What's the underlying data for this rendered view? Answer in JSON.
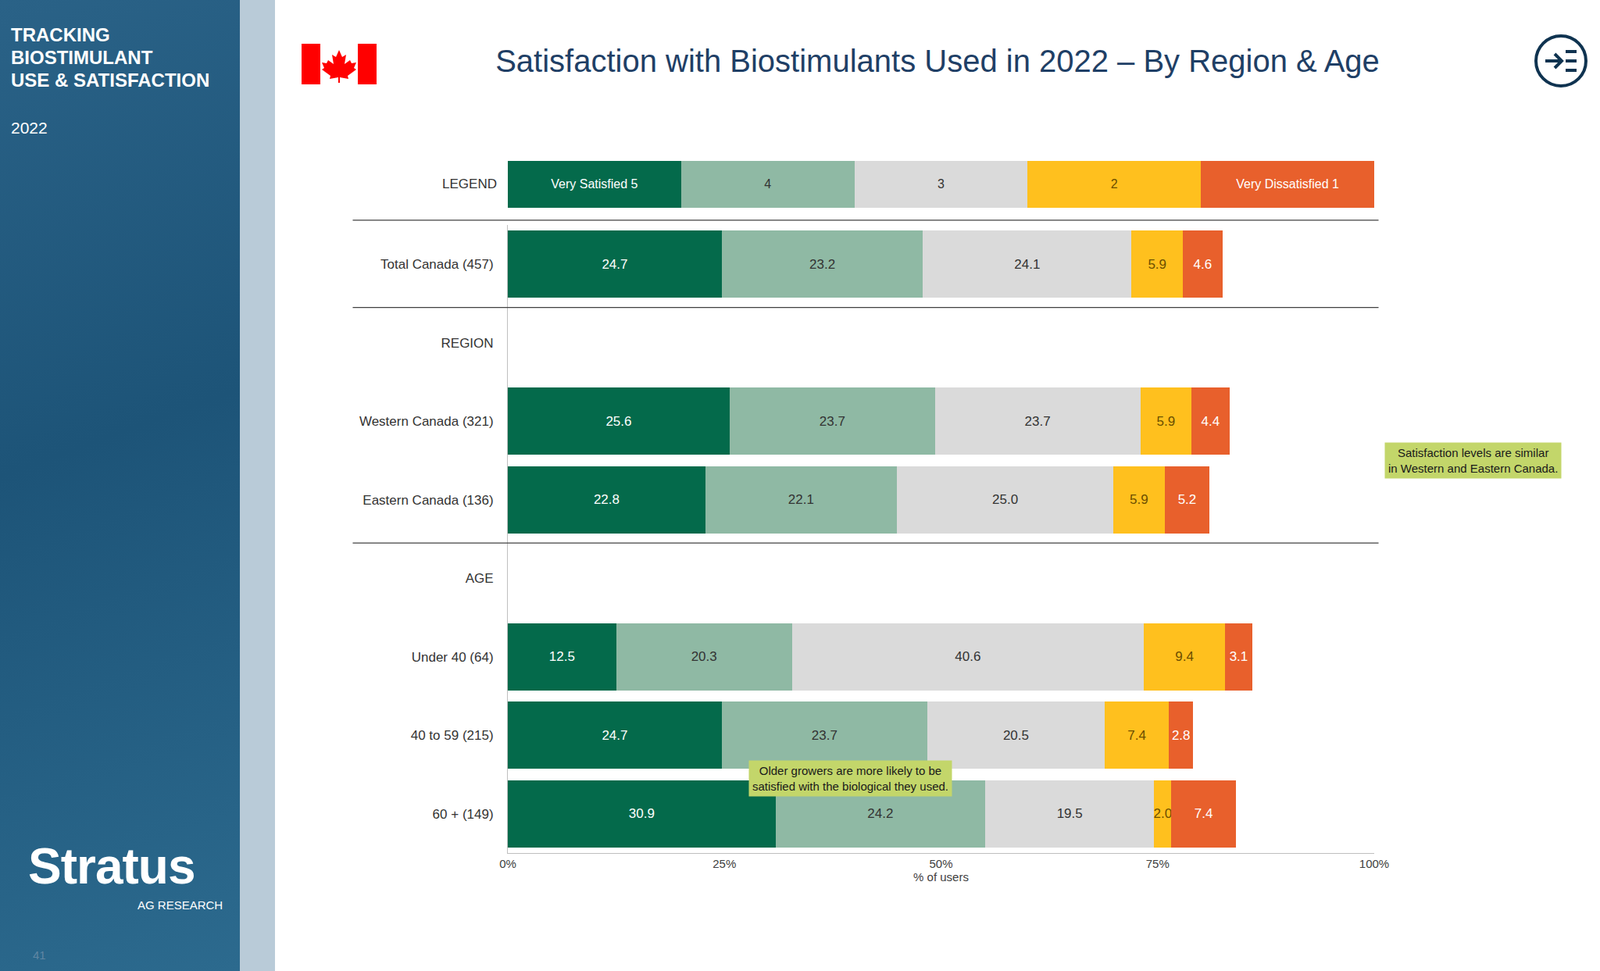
{
  "sidebar": {
    "title_lines": [
      "TRACKING",
      "BIOSTIMULANT",
      "USE & SATISFACTION"
    ],
    "year": "2022",
    "logo": "Stratus",
    "logo_sub": "AG RESEARCH",
    "page": "41"
  },
  "chart_data": {
    "type": "bar",
    "orientation": "horizontal",
    "stacked": true,
    "title": "Satisfaction with Biostimulants Used in 2022 – By Region & Age",
    "legend_label": "LEGEND",
    "legend": "top",
    "data_labels": true,
    "grid": false,
    "x_label": "% of users",
    "categories": [
      "Total Canada (457)",
      "REGION",
      "Western Canada (321)",
      "Eastern Canada (136)",
      "AGE",
      "Under 40 (64)",
      "40 to 59 (215)",
      "60 + (149)"
    ],
    "xlim": [
      0,
      100
    ],
    "xticks": [
      {
        "value": 0,
        "label": "0%"
      },
      {
        "value": 25,
        "label": "25%"
      },
      {
        "value": 50,
        "label": "50%"
      },
      {
        "value": 75,
        "label": "75%"
      },
      {
        "value": 100,
        "label": "100%"
      }
    ],
    "series": [
      {
        "name": "Very Satisfied 5",
        "color": "#046a4b",
        "values": [
          24.7,
          null,
          25.6,
          22.8,
          null,
          12.5,
          24.7,
          30.9
        ],
        "value_labels": [
          "24.7",
          null,
          "25.6",
          "22.8",
          null,
          "12.5",
          "24.7",
          "30.9"
        ]
      },
      {
        "name": "4",
        "color": "#8fb9a4",
        "values": [
          23.2,
          null,
          23.7,
          22.1,
          null,
          20.3,
          23.7,
          24.2
        ],
        "value_labels": [
          "23.2",
          null,
          "23.7",
          "22.1",
          null,
          "20.3",
          "23.7",
          "24.2"
        ]
      },
      {
        "name": "3",
        "color": "#dadada",
        "values": [
          24.1,
          null,
          23.7,
          25.0,
          null,
          40.6,
          20.5,
          19.5
        ],
        "value_labels": [
          "24.1",
          null,
          "23.7",
          "25.0",
          null,
          "40.6",
          "20.5",
          "19.5"
        ]
      },
      {
        "name": "2",
        "color": "#ffc01e",
        "values": [
          5.9,
          null,
          5.9,
          5.9,
          null,
          9.4,
          7.4,
          2.0
        ],
        "value_labels": [
          "5.9",
          null,
          "5.9",
          "5.9",
          null,
          "9.4",
          "7.4",
          "2.0"
        ]
      },
      {
        "name": "Very Dissatisfied 1",
        "color": "#e8602c",
        "values": [
          4.6,
          null,
          4.4,
          5.2,
          null,
          3.1,
          2.8,
          7.4
        ],
        "value_labels": [
          "4.6",
          null,
          "4.4",
          "5.2",
          null,
          "3.1",
          "2.8",
          "7.4"
        ]
      }
    ],
    "annotations": [
      {
        "text": "Satisfaction levels are similar in Western and Eastern Canada."
      },
      {
        "text": "Older growers are more likely to be satisfied with the biological they used."
      }
    ]
  }
}
